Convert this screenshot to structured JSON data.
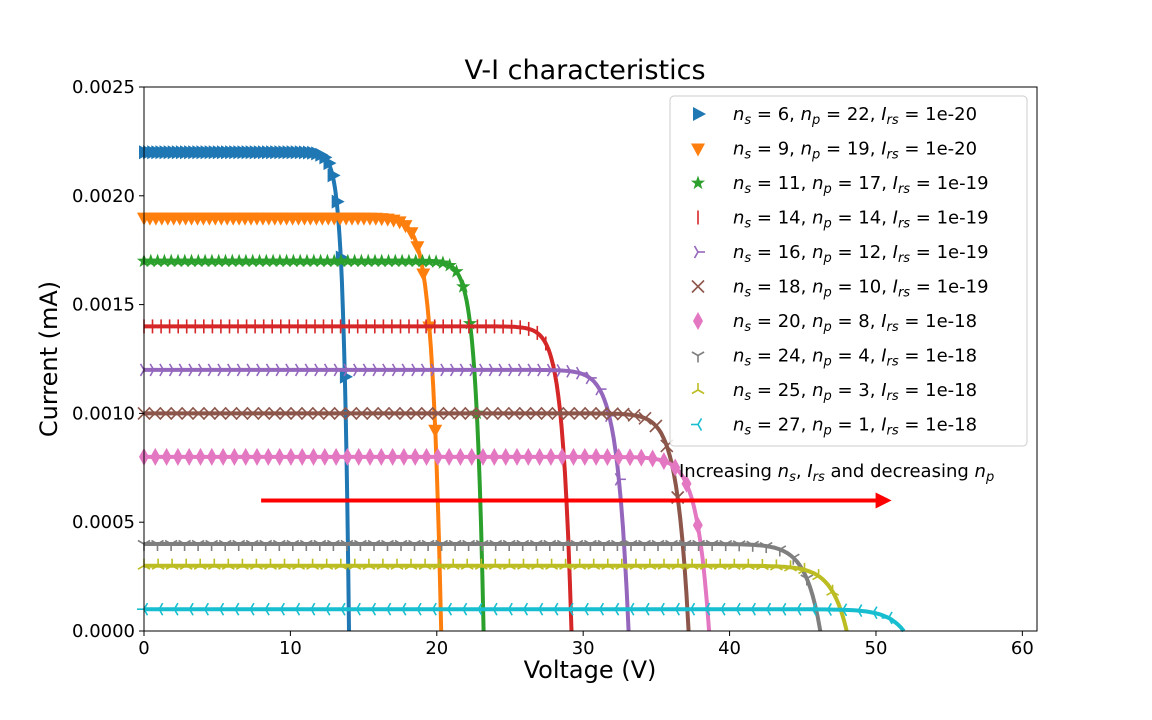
{
  "chart_data": {
    "type": "line",
    "title": "V-I characteristics",
    "xlabel": "Voltage (V)",
    "ylabel": "Current (mA)",
    "xlim": [
      0,
      61
    ],
    "ylim": [
      0,
      0.0025
    ],
    "xticks": [
      "0",
      "10",
      "20",
      "30",
      "40",
      "50",
      "60"
    ],
    "yticks": [
      "0.0000",
      "0.0005",
      "0.0010",
      "0.0015",
      "0.0020",
      "0.0025"
    ],
    "grid": false,
    "legend_position": "top-right",
    "series": [
      {
        "ns": "6",
        "np": "22",
        "irs": "1e-20",
        "color": "#1f77b4",
        "marker": "triangle-right",
        "isc": 0.0022,
        "voc": 14.0,
        "knee": 12.3
      },
      {
        "ns": "9",
        "np": "19",
        "irs": "1e-20",
        "color": "#ff7f0e",
        "marker": "triangle-down",
        "isc": 0.0019,
        "voc": 20.3,
        "knee": 17.5
      },
      {
        "ns": "11",
        "np": "17",
        "irs": "1e-19",
        "color": "#2ca02c",
        "marker": "star",
        "isc": 0.0017,
        "voc": 23.2,
        "knee": 20.8
      },
      {
        "ns": "14",
        "np": "14",
        "irs": "1e-19",
        "color": "#d62728",
        "marker": "vline",
        "isc": 0.0014,
        "voc": 29.2,
        "knee": 26.4
      },
      {
        "ns": "16",
        "np": "12",
        "irs": "1e-19",
        "color": "#9467bd",
        "marker": "tri-right",
        "isc": 0.0012,
        "voc": 33.1,
        "knee": 29.6
      },
      {
        "ns": "18",
        "np": "10",
        "irs": "1e-19",
        "color": "#8c564b",
        "marker": "x",
        "isc": 0.001,
        "voc": 37.2,
        "knee": 33.6
      },
      {
        "ns": "20",
        "np": "8",
        "irs": "1e-18",
        "color": "#e377c2",
        "marker": "thin-diamond",
        "isc": 0.0008,
        "voc": 38.6,
        "knee": 34.8
      },
      {
        "ns": "24",
        "np": "4",
        "irs": "1e-18",
        "color": "#7f7f7f",
        "marker": "tri-down",
        "isc": 0.0004,
        "voc": 46.2,
        "knee": 41.6
      },
      {
        "ns": "25",
        "np": "3",
        "irs": "1e-18",
        "color": "#bcbd22",
        "marker": "tri-up",
        "isc": 0.0003,
        "voc": 48.0,
        "knee": 43.2
      },
      {
        "ns": "27",
        "np": "1",
        "irs": "1e-18",
        "color": "#17becf",
        "marker": "tri-left",
        "isc": 0.0001,
        "voc": 51.9,
        "knee": 46.7
      }
    ],
    "annotation": {
      "text_parts": [
        "Increasing ",
        "n",
        "s",
        ", ",
        "I",
        "rs",
        " and decreasing ",
        "n",
        "p"
      ],
      "arrow_from": [
        8,
        0.0006
      ],
      "arrow_to": [
        51,
        0.0006
      ],
      "arrow_color": "#ff0000"
    }
  }
}
